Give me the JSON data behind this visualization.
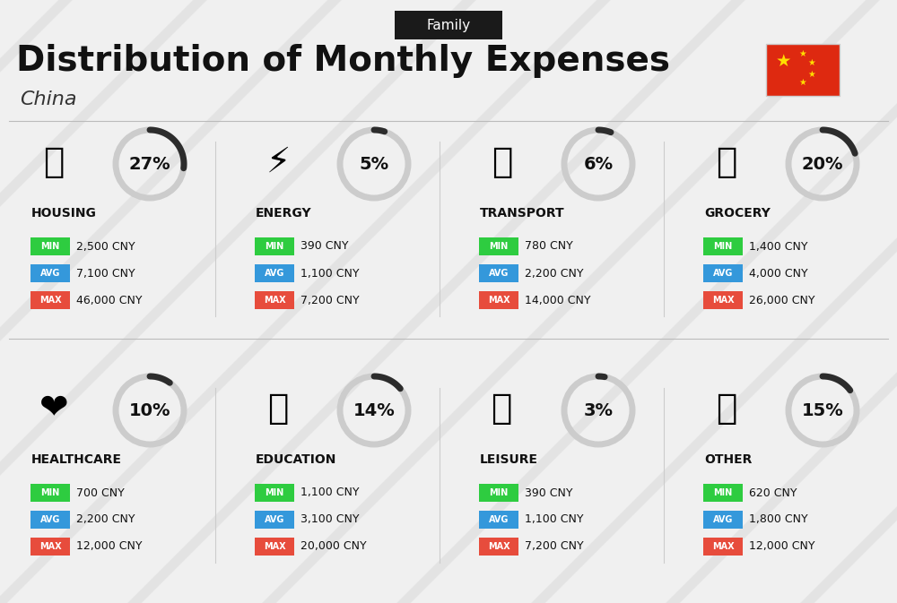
{
  "title": "Distribution of Monthly Expenses",
  "subtitle": "China",
  "tag": "Family",
  "bg_color": "#f0f0f0",
  "tag_bg": "#1a1a1a",
  "tag_color": "#ffffff",
  "categories": [
    {
      "name": "HOUSING",
      "percent": 27,
      "icon": "🏢",
      "min_val": "2,500 CNY",
      "avg_val": "7,100 CNY",
      "max_val": "46,000 CNY",
      "row": 0,
      "col": 0
    },
    {
      "name": "ENERGY",
      "percent": 5,
      "icon": "⚡",
      "min_val": "390 CNY",
      "avg_val": "1,100 CNY",
      "max_val": "7,200 CNY",
      "row": 0,
      "col": 1
    },
    {
      "name": "TRANSPORT",
      "percent": 6,
      "icon": "🚌",
      "min_val": "780 CNY",
      "avg_val": "2,200 CNY",
      "max_val": "14,000 CNY",
      "row": 0,
      "col": 2
    },
    {
      "name": "GROCERY",
      "percent": 20,
      "icon": "🛒",
      "min_val": "1,400 CNY",
      "avg_val": "4,000 CNY",
      "max_val": "26,000 CNY",
      "row": 0,
      "col": 3
    },
    {
      "name": "HEALTHCARE",
      "percent": 10,
      "icon": "❤️",
      "min_val": "700 CNY",
      "avg_val": "2,200 CNY",
      "max_val": "12,000 CNY",
      "row": 1,
      "col": 0
    },
    {
      "name": "EDUCATION",
      "percent": 14,
      "icon": "🎓",
      "min_val": "1,100 CNY",
      "avg_val": "3,100 CNY",
      "max_val": "20,000 CNY",
      "row": 1,
      "col": 1
    },
    {
      "name": "LEISURE",
      "percent": 3,
      "icon": "🛍️",
      "min_val": "390 CNY",
      "avg_val": "1,100 CNY",
      "max_val": "7,200 CNY",
      "row": 1,
      "col": 2
    },
    {
      "name": "OTHER",
      "percent": 15,
      "icon": "👛",
      "min_val": "620 CNY",
      "avg_val": "1,800 CNY",
      "max_val": "12,000 CNY",
      "row": 1,
      "col": 3
    }
  ],
  "min_color": "#2ecc40",
  "avg_color": "#3498db",
  "max_color": "#e74c3c",
  "label_color": "#ffffff",
  "donut_color": "#2c2c2c",
  "donut_bg": "#cccccc",
  "stripe_color": "#d8d8d8"
}
